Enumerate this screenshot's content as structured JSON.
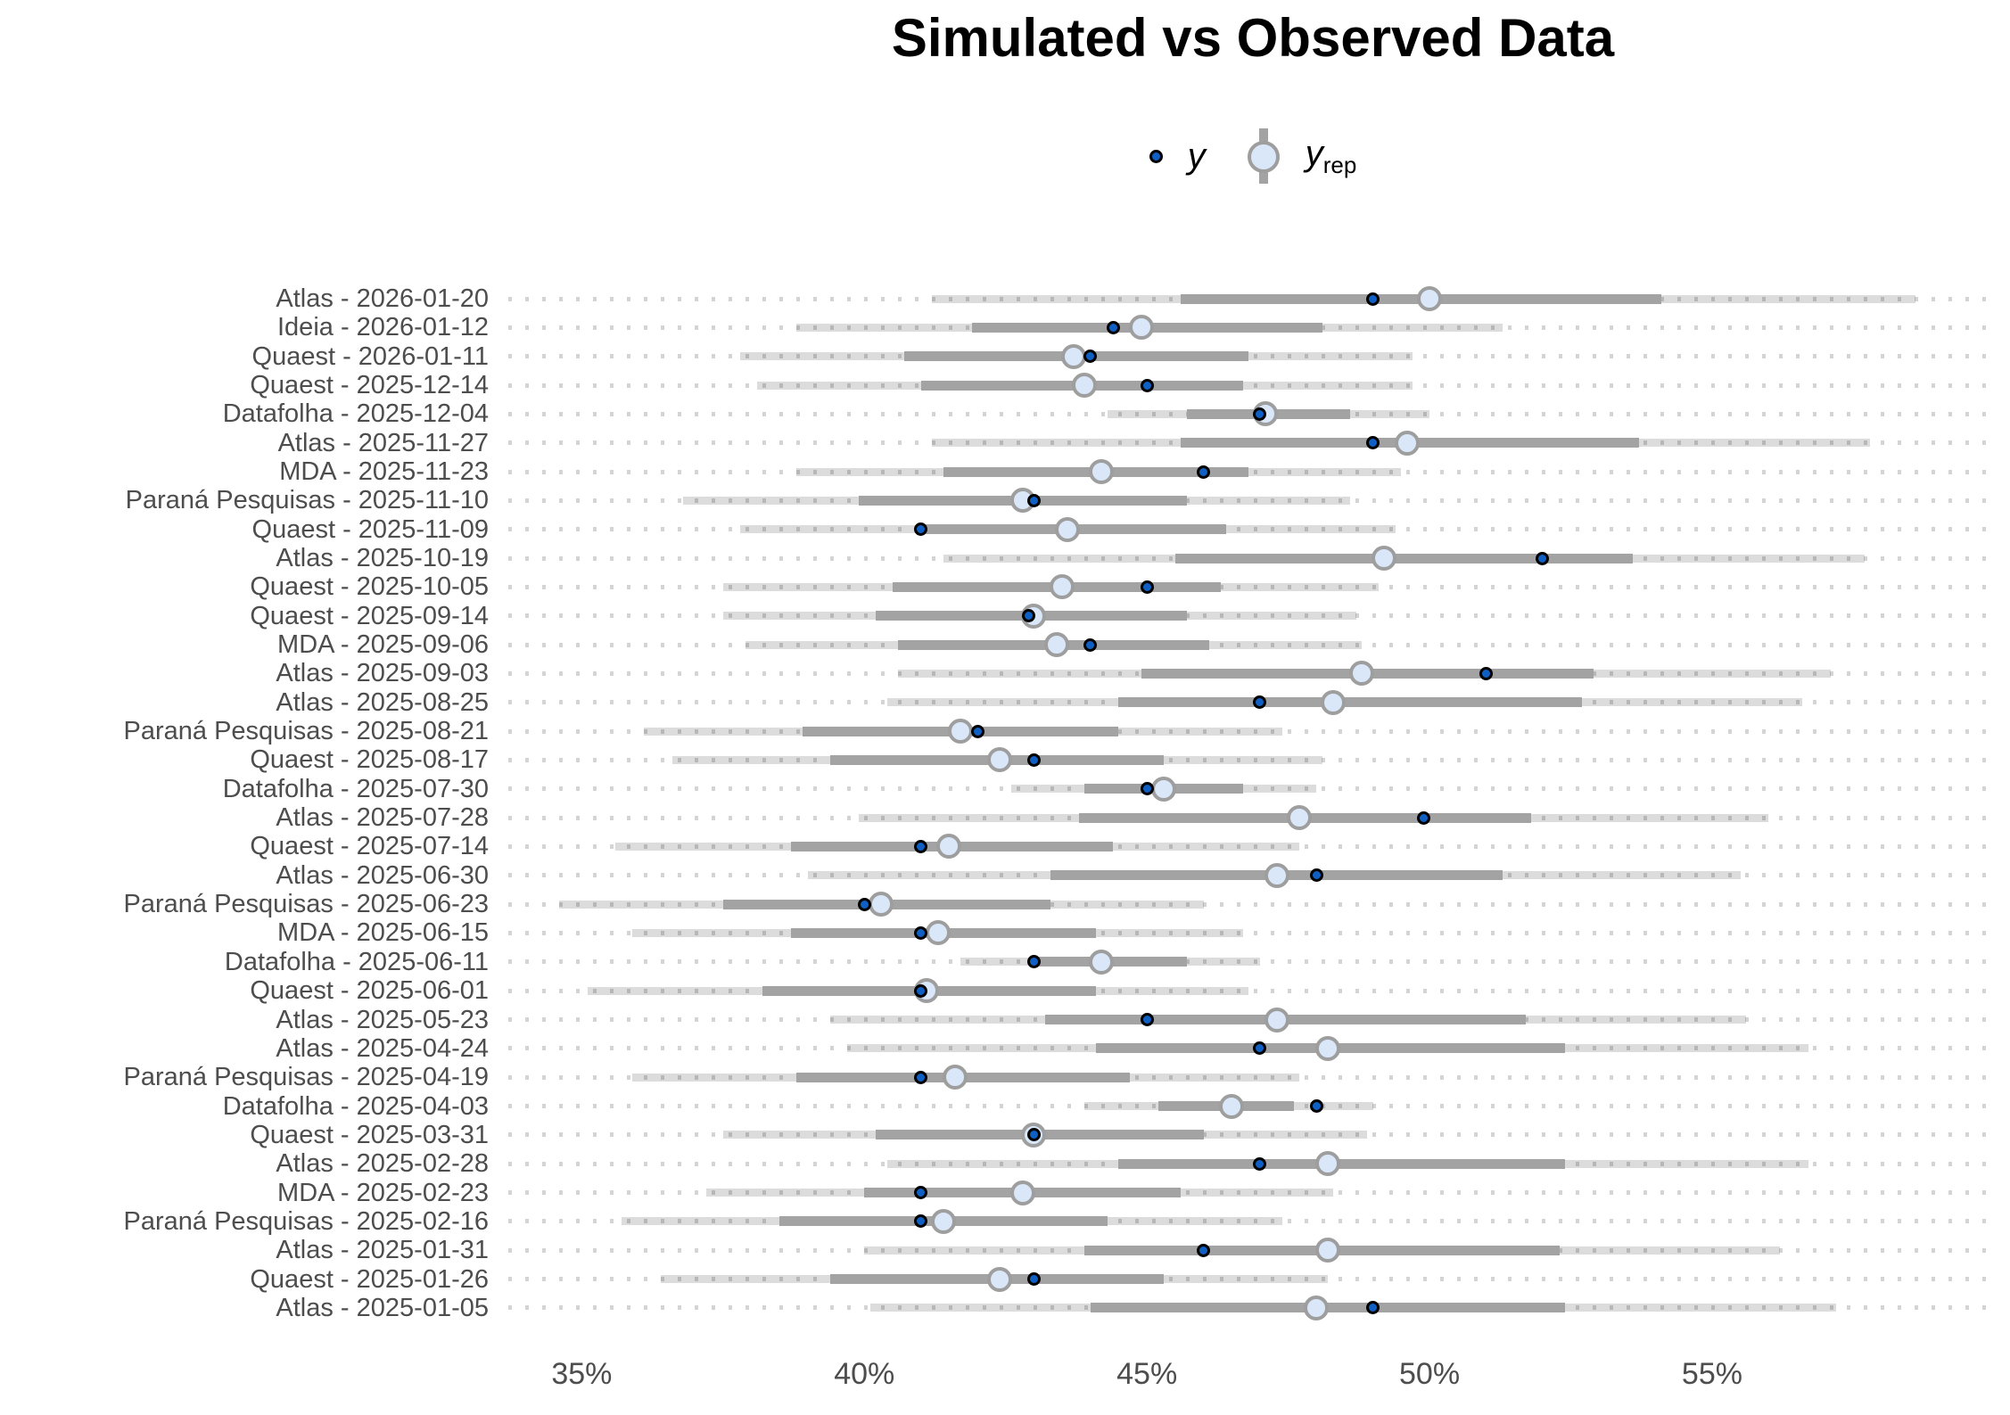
{
  "title": "Simulated vs Observed Data",
  "legend": {
    "y_label": "y",
    "yrep_label": "y",
    "yrep_sub": "rep"
  },
  "colors": {
    "observed_fill": "#1060c4",
    "observed_stroke": "#000000",
    "yrep_fill": "#d9e7f8",
    "yrep_stroke": "#9e9e9e",
    "inner_interval": "#a3a3a3",
    "outer_interval": "#dcdcdc",
    "dot_grid": "#cccccc",
    "axis_text": "#4d4d4d"
  },
  "chart_data": {
    "type": "scatter",
    "style": "point-interval (posterior predictive check, intervals per poll)",
    "title": "Simulated vs Observed Data",
    "xlabel": "",
    "ylabel": "",
    "x_unit": "%",
    "xlim": [
      33.7,
      60.05
    ],
    "x_ticks": [
      35,
      40,
      45,
      50,
      55
    ],
    "x_tick_labels": [
      "35%",
      "40%",
      "45%",
      "50%",
      "55%"
    ],
    "legend_entries": [
      "y",
      "y_rep"
    ],
    "legend_position": "top-center",
    "grid": "dotted horizontal guide per row",
    "rows": [
      {
        "label": "Atlas - 2026-01-20",
        "outer": [
          41.2,
          58.6
        ],
        "inner": [
          45.6,
          54.1
        ],
        "yrep": 50.0,
        "y": 49.0
      },
      {
        "label": "Ideia - 2026-01-12",
        "outer": [
          38.8,
          51.3
        ],
        "inner": [
          41.9,
          48.1
        ],
        "yrep": 44.9,
        "y": 44.4
      },
      {
        "label": "Quaest - 2026-01-11",
        "outer": [
          37.8,
          49.7
        ],
        "inner": [
          40.7,
          46.8
        ],
        "yrep": 43.7,
        "y": 44.0
      },
      {
        "label": "Quaest - 2025-12-14",
        "outer": [
          38.1,
          49.7
        ],
        "inner": [
          41.0,
          46.7
        ],
        "yrep": 43.9,
        "y": 45.0
      },
      {
        "label": "Datafolha - 2025-12-04",
        "outer": [
          44.3,
          50.0
        ],
        "inner": [
          45.7,
          48.6
        ],
        "yrep": 47.1,
        "y": 47.0
      },
      {
        "label": "Atlas - 2025-11-27",
        "outer": [
          41.2,
          57.8
        ],
        "inner": [
          45.6,
          53.7
        ],
        "yrep": 49.6,
        "y": 49.0
      },
      {
        "label": "MDA - 2025-11-23",
        "outer": [
          38.8,
          49.5
        ],
        "inner": [
          41.4,
          46.8
        ],
        "yrep": 44.2,
        "y": 46.0
      },
      {
        "label": "Paraná Pesquisas - 2025-11-10",
        "outer": [
          36.8,
          48.6
        ],
        "inner": [
          39.9,
          45.7
        ],
        "yrep": 42.8,
        "y": 43.0
      },
      {
        "label": "Quaest - 2025-11-09",
        "outer": [
          37.8,
          49.4
        ],
        "inner": [
          41.0,
          46.4
        ],
        "yrep": 43.6,
        "y": 41.0
      },
      {
        "label": "Atlas - 2025-10-19",
        "outer": [
          41.4,
          57.7
        ],
        "inner": [
          45.5,
          53.6
        ],
        "yrep": 49.2,
        "y": 52.0
      },
      {
        "label": "Quaest - 2025-10-05",
        "outer": [
          37.5,
          49.1
        ],
        "inner": [
          40.5,
          46.3
        ],
        "yrep": 43.5,
        "y": 45.0
      },
      {
        "label": "Quaest - 2025-09-14",
        "outer": [
          37.5,
          48.7
        ],
        "inner": [
          40.2,
          45.7
        ],
        "yrep": 43.0,
        "y": 42.9
      },
      {
        "label": "MDA - 2025-09-06",
        "outer": [
          37.9,
          48.8
        ],
        "inner": [
          40.6,
          46.1
        ],
        "yrep": 43.4,
        "y": 44.0
      },
      {
        "label": "Atlas - 2025-09-03",
        "outer": [
          40.6,
          57.1
        ],
        "inner": [
          44.9,
          52.9
        ],
        "yrep": 48.8,
        "y": 51.0
      },
      {
        "label": "Atlas - 2025-08-25",
        "outer": [
          40.4,
          56.6
        ],
        "inner": [
          44.5,
          52.7
        ],
        "yrep": 48.3,
        "y": 47.0
      },
      {
        "label": "Paraná Pesquisas - 2025-08-21",
        "outer": [
          36.1,
          47.4
        ],
        "inner": [
          38.9,
          44.5
        ],
        "yrep": 41.7,
        "y": 42.0
      },
      {
        "label": "Quaest - 2025-08-17",
        "outer": [
          36.6,
          48.1
        ],
        "inner": [
          39.4,
          45.3
        ],
        "yrep": 42.4,
        "y": 43.0
      },
      {
        "label": "Datafolha - 2025-07-30",
        "outer": [
          42.6,
          48.0
        ],
        "inner": [
          43.9,
          46.7
        ],
        "yrep": 45.3,
        "y": 45.0
      },
      {
        "label": "Atlas - 2025-07-28",
        "outer": [
          39.9,
          56.0
        ],
        "inner": [
          43.8,
          51.8
        ],
        "yrep": 47.7,
        "y": 49.9
      },
      {
        "label": "Quaest - 2025-07-14",
        "outer": [
          35.6,
          47.7
        ],
        "inner": [
          38.7,
          44.4
        ],
        "yrep": 41.5,
        "y": 41.0
      },
      {
        "label": "Atlas - 2025-06-30",
        "outer": [
          39.0,
          55.5
        ],
        "inner": [
          43.3,
          51.3
        ],
        "yrep": 47.3,
        "y": 48.0
      },
      {
        "label": "Paraná Pesquisas - 2025-06-23",
        "outer": [
          34.6,
          46.0
        ],
        "inner": [
          37.5,
          43.3
        ],
        "yrep": 40.3,
        "y": 40.0
      },
      {
        "label": "MDA - 2025-06-15",
        "outer": [
          35.9,
          46.7
        ],
        "inner": [
          38.7,
          44.1
        ],
        "yrep": 41.3,
        "y": 41.0
      },
      {
        "label": "Datafolha - 2025-06-11",
        "outer": [
          41.7,
          47.0
        ],
        "inner": [
          43.0,
          45.7
        ],
        "yrep": 44.2,
        "y": 43.0
      },
      {
        "label": "Quaest - 2025-06-01",
        "outer": [
          35.1,
          46.8
        ],
        "inner": [
          38.2,
          44.1
        ],
        "yrep": 41.1,
        "y": 41.0
      },
      {
        "label": "Atlas - 2025-05-23",
        "outer": [
          39.4,
          55.6
        ],
        "inner": [
          43.2,
          51.7
        ],
        "yrep": 47.3,
        "y": 45.0
      },
      {
        "label": "Atlas - 2025-04-24",
        "outer": [
          39.7,
          56.7
        ],
        "inner": [
          44.1,
          52.4
        ],
        "yrep": 48.2,
        "y": 47.0
      },
      {
        "label": "Paraná Pesquisas - 2025-04-19",
        "outer": [
          35.9,
          47.7
        ],
        "inner": [
          38.8,
          44.7
        ],
        "yrep": 41.6,
        "y": 41.0
      },
      {
        "label": "Datafolha - 2025-04-03",
        "outer": [
          43.9,
          49.0
        ],
        "inner": [
          45.2,
          47.6
        ],
        "yrep": 46.5,
        "y": 48.0
      },
      {
        "label": "Quaest - 2025-03-31",
        "outer": [
          37.5,
          48.9
        ],
        "inner": [
          40.2,
          46.0
        ],
        "yrep": 43.0,
        "y": 43.0
      },
      {
        "label": "Atlas - 2025-02-28",
        "outer": [
          40.4,
          56.7
        ],
        "inner": [
          44.5,
          52.4
        ],
        "yrep": 48.2,
        "y": 47.0
      },
      {
        "label": "MDA - 2025-02-23",
        "outer": [
          37.2,
          48.3
        ],
        "inner": [
          40.0,
          45.6
        ],
        "yrep": 42.8,
        "y": 41.0
      },
      {
        "label": "Paraná Pesquisas - 2025-02-16",
        "outer": [
          35.7,
          47.4
        ],
        "inner": [
          38.5,
          44.3
        ],
        "yrep": 41.4,
        "y": 41.0
      },
      {
        "label": "Atlas - 2025-01-31",
        "outer": [
          40.0,
          56.2
        ],
        "inner": [
          43.9,
          52.3
        ],
        "yrep": 48.2,
        "y": 46.0
      },
      {
        "label": "Quaest - 2025-01-26",
        "outer": [
          36.4,
          48.2
        ],
        "inner": [
          39.4,
          45.3
        ],
        "yrep": 42.4,
        "y": 43.0
      },
      {
        "label": "Atlas - 2025-01-05",
        "outer": [
          40.1,
          57.2
        ],
        "inner": [
          44.0,
          52.4
        ],
        "yrep": 48.0,
        "y": 49.0
      }
    ]
  }
}
